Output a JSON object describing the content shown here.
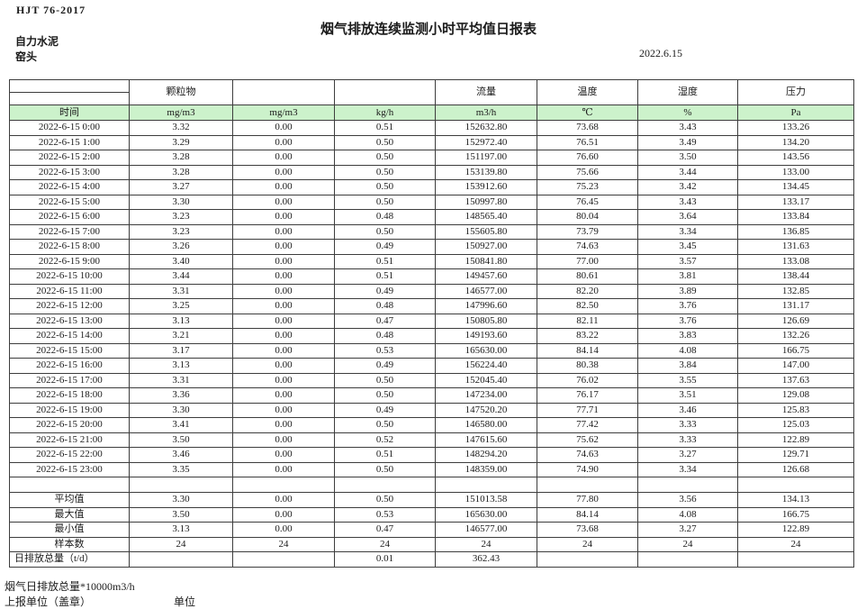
{
  "header": {
    "doc_code": "HJT  76-2017",
    "title": "烟气排放连续监测小时平均值日报表",
    "company": "自力水泥",
    "station": "窑头",
    "date": "2022.6.15"
  },
  "colors": {
    "unit_row_green": "#ccf2cb",
    "border": "#3d3d3d"
  },
  "table": {
    "group_headers": [
      "",
      "颗粒物",
      "",
      "",
      "流量",
      "温度",
      "湿度",
      "压力"
    ],
    "unit_row": [
      "时间",
      "mg/m3",
      "mg/m3",
      "kg/h",
      "m3/h",
      "℃",
      "%",
      "Pa"
    ],
    "rows": [
      [
        "2022-6-15 0:00",
        "3.32",
        "0.00",
        "0.51",
        "152632.80",
        "73.68",
        "3.43",
        "133.26"
      ],
      [
        "2022-6-15 1:00",
        "3.29",
        "0.00",
        "0.50",
        "152972.40",
        "76.51",
        "3.49",
        "134.20"
      ],
      [
        "2022-6-15 2:00",
        "3.28",
        "0.00",
        "0.50",
        "151197.00",
        "76.60",
        "3.50",
        "143.56"
      ],
      [
        "2022-6-15 3:00",
        "3.28",
        "0.00",
        "0.50",
        "153139.80",
        "75.66",
        "3.44",
        "133.00"
      ],
      [
        "2022-6-15 4:00",
        "3.27",
        "0.00",
        "0.50",
        "153912.60",
        "75.23",
        "3.42",
        "134.45"
      ],
      [
        "2022-6-15 5:00",
        "3.30",
        "0.00",
        "0.50",
        "150997.80",
        "76.45",
        "3.43",
        "133.17"
      ],
      [
        "2022-6-15 6:00",
        "3.23",
        "0.00",
        "0.48",
        "148565.40",
        "80.04",
        "3.64",
        "133.84"
      ],
      [
        "2022-6-15 7:00",
        "3.23",
        "0.00",
        "0.50",
        "155605.80",
        "73.79",
        "3.34",
        "136.85"
      ],
      [
        "2022-6-15 8:00",
        "3.26",
        "0.00",
        "0.49",
        "150927.00",
        "74.63",
        "3.45",
        "131.63"
      ],
      [
        "2022-6-15 9:00",
        "3.40",
        "0.00",
        "0.51",
        "150841.80",
        "77.00",
        "3.57",
        "133.08"
      ],
      [
        "2022-6-15 10:00",
        "3.44",
        "0.00",
        "0.51",
        "149457.60",
        "80.61",
        "3.81",
        "138.44"
      ],
      [
        "2022-6-15 11:00",
        "3.31",
        "0.00",
        "0.49",
        "146577.00",
        "82.20",
        "3.89",
        "132.85"
      ],
      [
        "2022-6-15 12:00",
        "3.25",
        "0.00",
        "0.48",
        "147996.60",
        "82.50",
        "3.76",
        "131.17"
      ],
      [
        "2022-6-15 13:00",
        "3.13",
        "0.00",
        "0.47",
        "150805.80",
        "82.11",
        "3.76",
        "126.69"
      ],
      [
        "2022-6-15 14:00",
        "3.21",
        "0.00",
        "0.48",
        "149193.60",
        "83.22",
        "3.83",
        "132.26"
      ],
      [
        "2022-6-15 15:00",
        "3.17",
        "0.00",
        "0.53",
        "165630.00",
        "84.14",
        "4.08",
        "166.75"
      ],
      [
        "2022-6-15 16:00",
        "3.13",
        "0.00",
        "0.49",
        "156224.40",
        "80.38",
        "3.84",
        "147.00"
      ],
      [
        "2022-6-15 17:00",
        "3.31",
        "0.00",
        "0.50",
        "152045.40",
        "76.02",
        "3.55",
        "137.63"
      ],
      [
        "2022-6-15 18:00",
        "3.36",
        "0.00",
        "0.50",
        "147234.00",
        "76.17",
        "3.51",
        "129.08"
      ],
      [
        "2022-6-15 19:00",
        "3.30",
        "0.00",
        "0.49",
        "147520.20",
        "77.71",
        "3.46",
        "125.83"
      ],
      [
        "2022-6-15 20:00",
        "3.41",
        "0.00",
        "0.50",
        "146580.00",
        "77.42",
        "3.33",
        "125.03"
      ],
      [
        "2022-6-15 21:00",
        "3.50",
        "0.00",
        "0.52",
        "147615.60",
        "75.62",
        "3.33",
        "122.89"
      ],
      [
        "2022-6-15 22:00",
        "3.46",
        "0.00",
        "0.51",
        "148294.20",
        "74.63",
        "3.27",
        "129.71"
      ],
      [
        "2022-6-15 23:00",
        "3.35",
        "0.00",
        "0.50",
        "148359.00",
        "74.90",
        "3.34",
        "126.68"
      ]
    ],
    "summary_rows": [
      [
        "平均值",
        "3.30",
        "0.00",
        "0.50",
        "151013.58",
        "77.80",
        "3.56",
        "134.13"
      ],
      [
        "最大值",
        "3.50",
        "0.00",
        "0.53",
        "165630.00",
        "84.14",
        "4.08",
        "166.75"
      ],
      [
        "最小值",
        "3.13",
        "0.00",
        "0.47",
        "146577.00",
        "73.68",
        "3.27",
        "122.89"
      ],
      [
        "样本数",
        "24",
        "24",
        "24",
        "24",
        "24",
        "24",
        "24"
      ],
      [
        "日排放总量（t/d）",
        "",
        "",
        "0.01",
        "362.43",
        "",
        "",
        ""
      ]
    ]
  },
  "footer": {
    "note": "烟气日排放总量*10000m3/h",
    "report_unit": "上报单位（盖章）",
    "unit_label": "单位"
  }
}
